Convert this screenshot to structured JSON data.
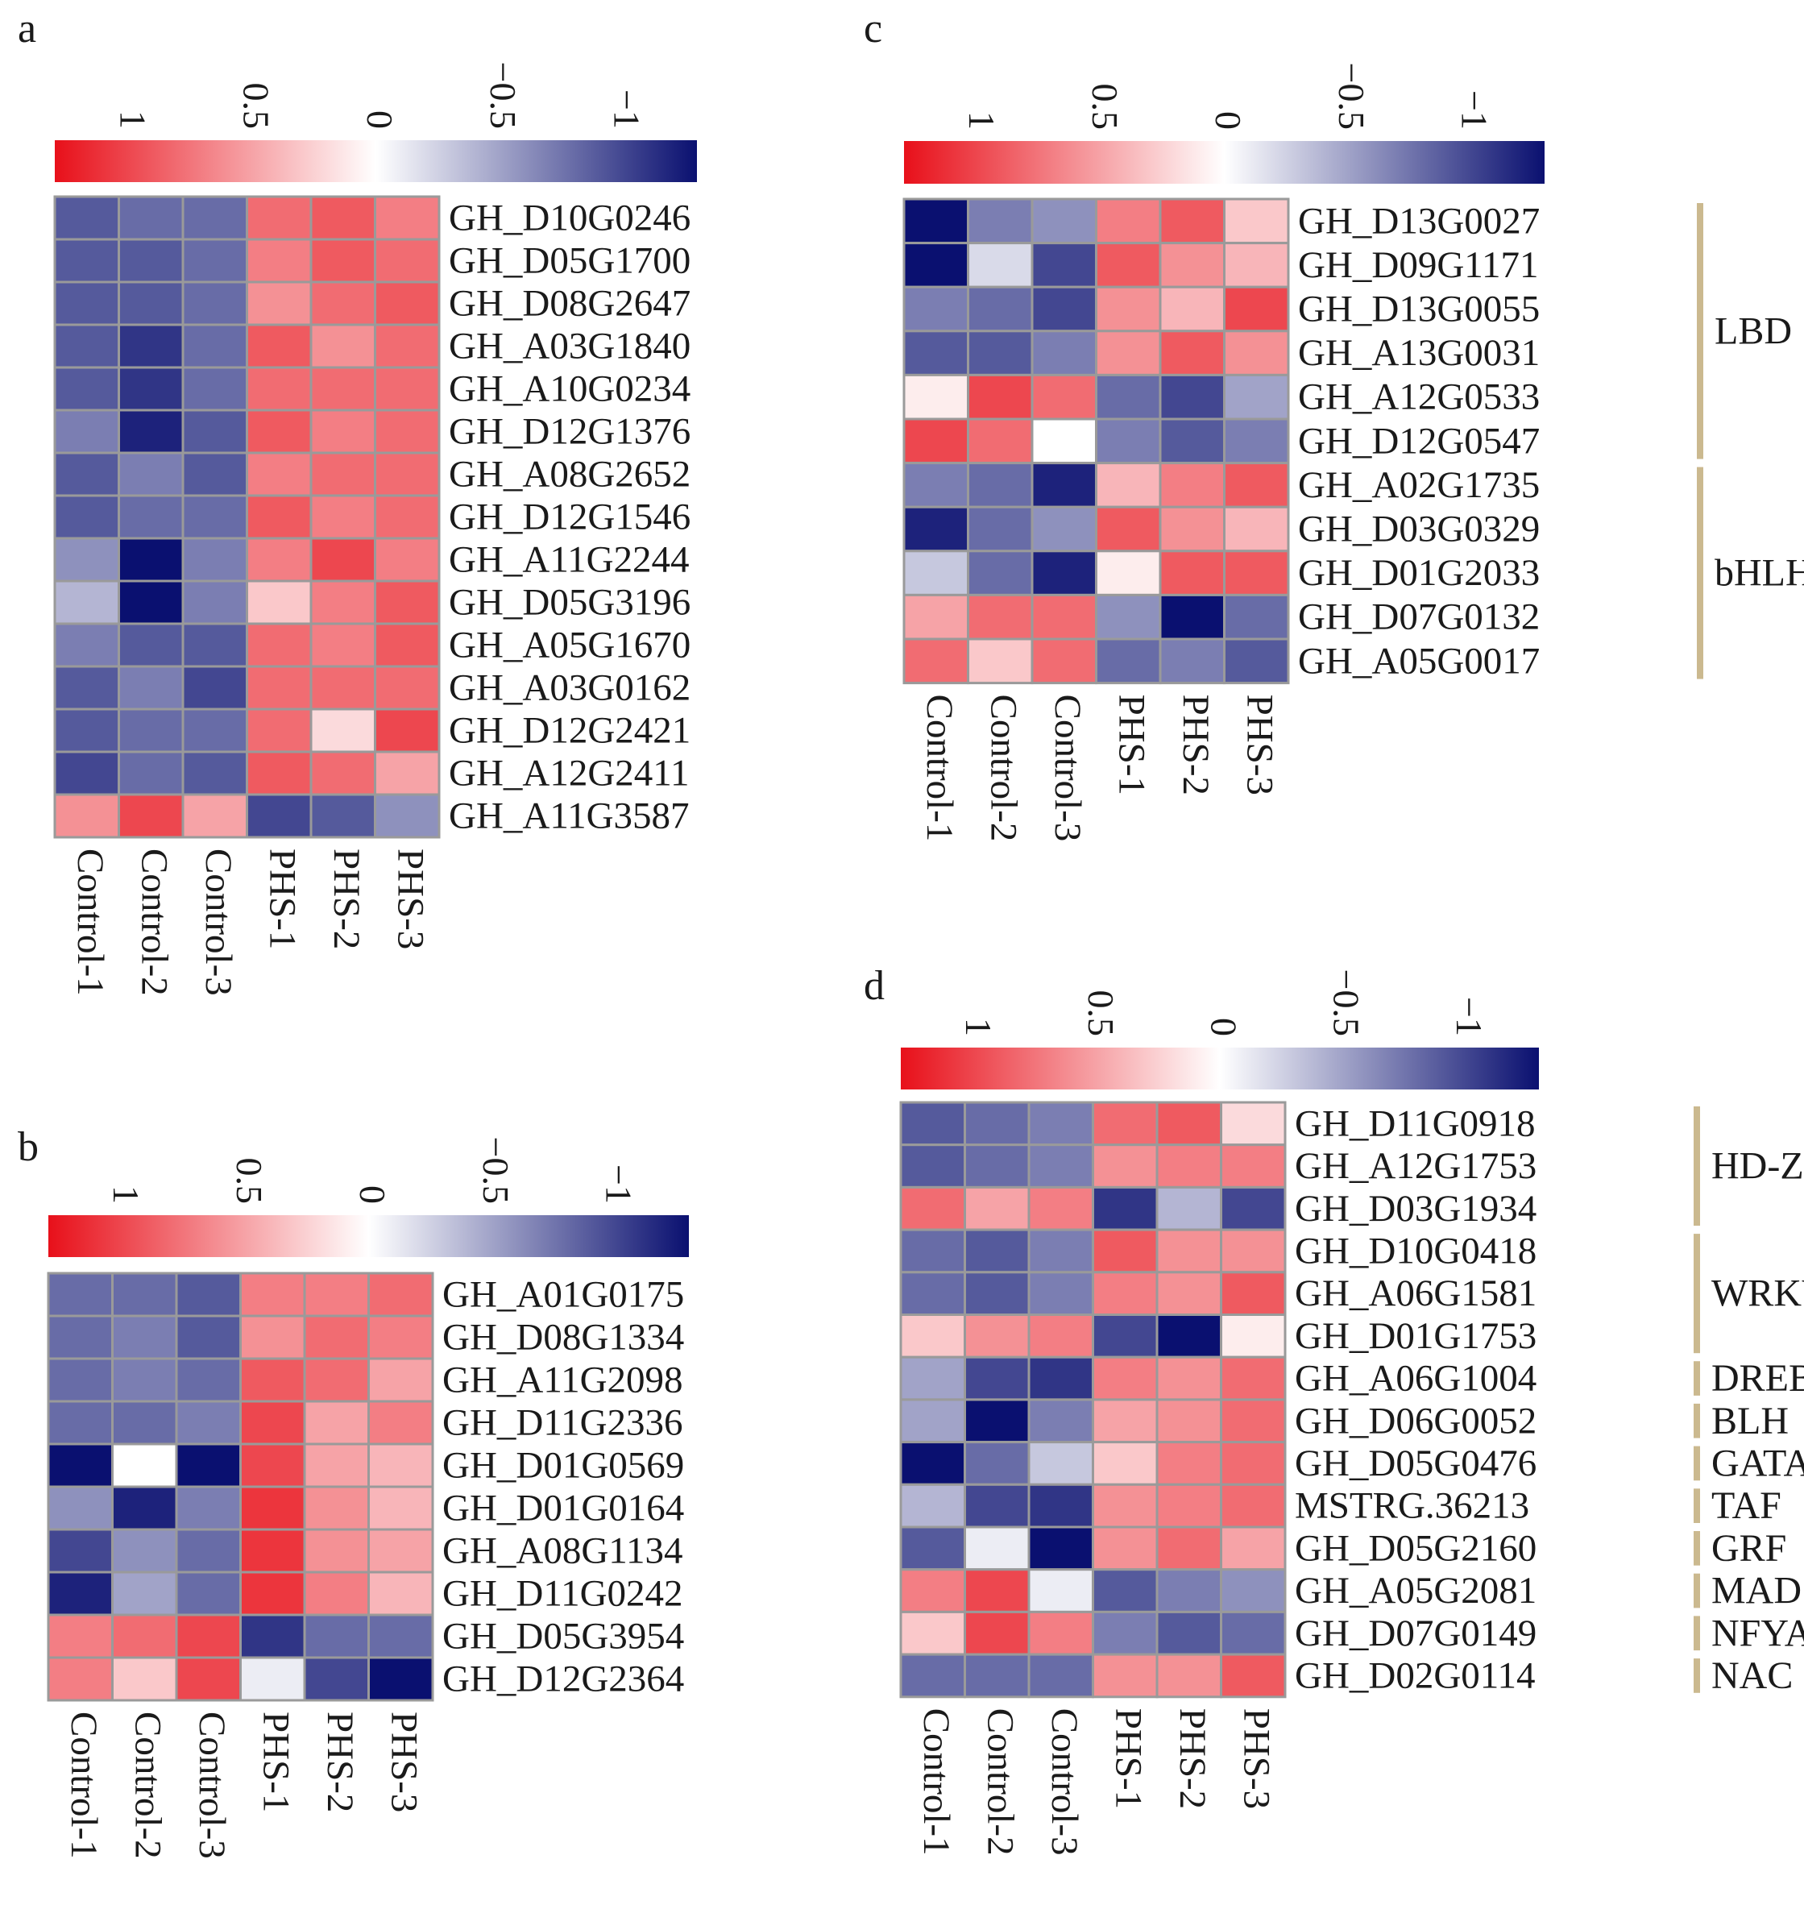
{
  "chart_data": [
    {
      "type": "heatmap",
      "panel": "a",
      "colorbar": {
        "ticks": [
          "1",
          "0.5",
          "0",
          "−0.5",
          "−1"
        ],
        "tick_values": [
          1,
          0.5,
          0,
          -0.5,
          -1
        ],
        "range": [
          1.3,
          -1.3
        ]
      },
      "columns": [
        "Control-1",
        "Control-2",
        "Control-3",
        "PHS-1",
        "PHS-2",
        "PHS-3"
      ],
      "rows": [
        "GH_D10G0246",
        "GH_D05G1700",
        "GH_D08G2647",
        "GH_A03G1840",
        "GH_A10G0234",
        "GH_D12G1376",
        "GH_A08G2652",
        "GH_D12G1546",
        "GH_A11G2244",
        "GH_D05G3196",
        "GH_A05G1670",
        "GH_A03G0162",
        "GH_D12G2421",
        "GH_A12G2411",
        "GH_A11G3587"
      ],
      "values": [
        [
          -0.9,
          -0.8,
          -0.8,
          0.8,
          0.9,
          0.7
        ],
        [
          -0.9,
          -0.9,
          -0.8,
          0.7,
          0.9,
          0.8
        ],
        [
          -0.9,
          -0.9,
          -0.8,
          0.6,
          0.8,
          0.9
        ],
        [
          -0.9,
          -1.1,
          -0.8,
          0.9,
          0.6,
          0.8
        ],
        [
          -0.9,
          -1.1,
          -0.8,
          0.8,
          0.8,
          0.8
        ],
        [
          -0.7,
          -1.2,
          -0.9,
          0.9,
          0.7,
          0.8
        ],
        [
          -0.9,
          -0.7,
          -0.9,
          0.7,
          0.8,
          0.8
        ],
        [
          -0.9,
          -0.8,
          -0.8,
          0.9,
          0.7,
          0.8
        ],
        [
          -0.6,
          -1.3,
          -0.7,
          0.7,
          1.0,
          0.7
        ],
        [
          -0.4,
          -1.3,
          -0.7,
          0.3,
          0.7,
          0.9
        ],
        [
          -0.7,
          -0.9,
          -0.9,
          0.8,
          0.7,
          0.9
        ],
        [
          -0.9,
          -0.7,
          -1.0,
          0.8,
          0.8,
          0.8
        ],
        [
          -0.9,
          -0.8,
          -0.8,
          0.8,
          0.2,
          1.0
        ],
        [
          -1.0,
          -0.8,
          -0.9,
          0.9,
          0.8,
          0.5
        ],
        [
          0.6,
          1.0,
          0.5,
          -1.0,
          -0.9,
          -0.6
        ]
      ]
    },
    {
      "type": "heatmap",
      "panel": "b",
      "colorbar": {
        "ticks": [
          "1",
          "0.5",
          "0",
          "−0.5",
          "−1"
        ],
        "tick_values": [
          1,
          0.5,
          0,
          -0.5,
          -1
        ],
        "range": [
          1.3,
          -1.3
        ]
      },
      "columns": [
        "Control-1",
        "Control-2",
        "Control-3",
        "PHS-1",
        "PHS-2",
        "PHS-3"
      ],
      "rows": [
        "GH_A01G0175",
        "GH_D08G1334",
        "GH_A11G2098",
        "GH_D11G2336",
        "GH_D01G0569",
        "GH_D01G0164",
        "GH_A08G1134",
        "GH_D11G0242",
        "GH_D05G3954",
        "GH_D12G2364"
      ],
      "values": [
        [
          -0.8,
          -0.8,
          -0.9,
          0.7,
          0.7,
          0.8
        ],
        [
          -0.8,
          -0.7,
          -0.9,
          0.6,
          0.8,
          0.7
        ],
        [
          -0.8,
          -0.7,
          -0.8,
          0.9,
          0.8,
          0.5
        ],
        [
          -0.8,
          -0.8,
          -0.7,
          1.0,
          0.5,
          0.7
        ],
        [
          -1.3,
          0.0,
          -1.3,
          1.0,
          0.5,
          0.4
        ],
        [
          -0.6,
          -1.2,
          -0.7,
          1.1,
          0.6,
          0.4
        ],
        [
          -1.0,
          -0.6,
          -0.8,
          1.1,
          0.6,
          0.5
        ],
        [
          -1.2,
          -0.5,
          -0.8,
          1.1,
          0.7,
          0.4
        ],
        [
          0.7,
          0.8,
          1.0,
          -1.1,
          -0.8,
          -0.8
        ],
        [
          0.7,
          0.3,
          1.0,
          -0.1,
          -1.0,
          -1.3
        ]
      ]
    },
    {
      "type": "heatmap",
      "panel": "c",
      "colorbar": {
        "ticks": [
          "1",
          "0.5",
          "0",
          "−0.5",
          "−1"
        ],
        "tick_values": [
          1,
          0.5,
          0,
          -0.5,
          -1
        ],
        "range": [
          1.3,
          -1.3
        ]
      },
      "columns": [
        "Control-1",
        "Control-2",
        "Control-3",
        "PHS-1",
        "PHS-2",
        "PHS-3"
      ],
      "rows": [
        "GH_D13G0027",
        "GH_D09G1171",
        "GH_D13G0055",
        "GH_A13G0031",
        "GH_A12G0533",
        "GH_D12G0547",
        "GH_A02G1735",
        "GH_D03G0329",
        "GH_D01G2033",
        "GH_D07G0132",
        "GH_A05G0017"
      ],
      "values": [
        [
          -1.3,
          -0.7,
          -0.6,
          0.7,
          0.9,
          0.3
        ],
        [
          -1.3,
          -0.2,
          -1.0,
          0.9,
          0.6,
          0.4
        ],
        [
          -0.7,
          -0.8,
          -1.0,
          0.6,
          0.4,
          1.0
        ],
        [
          -0.9,
          -0.9,
          -0.7,
          0.6,
          0.9,
          0.6
        ],
        [
          0.1,
          1.0,
          0.8,
          -0.8,
          -1.0,
          -0.5
        ],
        [
          1.0,
          0.8,
          0.0,
          -0.7,
          -0.9,
          -0.7
        ],
        [
          -0.7,
          -0.8,
          -1.2,
          0.4,
          0.7,
          0.9
        ],
        [
          -1.2,
          -0.8,
          -0.6,
          0.9,
          0.6,
          0.4
        ],
        [
          -0.3,
          -0.8,
          -1.2,
          0.1,
          0.9,
          0.9
        ],
        [
          0.5,
          0.8,
          0.8,
          -0.6,
          -1.3,
          -0.8
        ],
        [
          0.8,
          0.3,
          0.8,
          -0.8,
          -0.7,
          -0.9
        ]
      ]
    },
    {
      "type": "heatmap",
      "panel": "d",
      "colorbar": {
        "ticks": [
          "1",
          "0.5",
          "0",
          "−0.5",
          "−1"
        ],
        "tick_values": [
          1,
          0.5,
          0,
          -0.5,
          -1
        ],
        "range": [
          1.3,
          -1.3
        ]
      },
      "columns": [
        "Control-1",
        "Control-2",
        "Control-3",
        "PHS-1",
        "PHS-2",
        "PHS-3"
      ],
      "rows": [
        "GH_D11G0918",
        "GH_A12G1753",
        "GH_D03G1934",
        "GH_D10G0418",
        "GH_A06G1581",
        "GH_D01G1753",
        "GH_A06G1004",
        "GH_D06G0052",
        "GH_D05G0476",
        "MSTRG.36213",
        "GH_D05G2160",
        "GH_A05G2081",
        "GH_D07G0149",
        "GH_D02G0114"
      ],
      "values": [
        [
          -0.9,
          -0.8,
          -0.7,
          0.8,
          0.9,
          0.2
        ],
        [
          -0.9,
          -0.8,
          -0.7,
          0.6,
          0.7,
          0.7
        ],
        [
          0.8,
          0.5,
          0.7,
          -1.1,
          -0.4,
          -1.0
        ],
        [
          -0.8,
          -0.9,
          -0.7,
          0.9,
          0.6,
          0.6
        ],
        [
          -0.8,
          -0.9,
          -0.7,
          0.7,
          0.6,
          0.9
        ],
        [
          0.3,
          0.6,
          0.7,
          -1.0,
          -1.4,
          0.1
        ],
        [
          -0.5,
          -1.0,
          -1.1,
          0.7,
          0.6,
          0.8
        ],
        [
          -0.5,
          -1.3,
          -0.7,
          0.5,
          0.6,
          0.8
        ],
        [
          -1.3,
          -0.8,
          -0.3,
          0.3,
          0.7,
          0.8
        ],
        [
          -0.4,
          -1.0,
          -1.1,
          0.6,
          0.7,
          0.8
        ],
        [
          -0.9,
          -0.1,
          -1.3,
          0.6,
          0.8,
          0.5
        ],
        [
          0.7,
          1.0,
          -0.1,
          -0.9,
          -0.7,
          -0.6
        ],
        [
          0.3,
          1.0,
          0.7,
          -0.7,
          -0.9,
          -0.8
        ],
        [
          -0.8,
          -0.8,
          -0.8,
          0.6,
          0.6,
          0.9
        ]
      ]
    }
  ],
  "panels": {
    "a": {
      "label": "a"
    },
    "b": {
      "label": "b"
    },
    "c": {
      "label": "c",
      "groups": [
        {
          "label": "LBD",
          "from": 0,
          "to": 5
        },
        {
          "label": "bHLH",
          "from": 6,
          "to": 10
        }
      ]
    },
    "d": {
      "label": "d",
      "groups": [
        {
          "label": "HD-Zip",
          "from": 0,
          "to": 2
        },
        {
          "label": "WRKY",
          "from": 3,
          "to": 5
        },
        {
          "label": "DREB",
          "from": 6,
          "to": 6
        },
        {
          "label": "BLH",
          "from": 7,
          "to": 7
        },
        {
          "label": "GATA",
          "from": 8,
          "to": 8
        },
        {
          "label": "TAF",
          "from": 9,
          "to": 9
        },
        {
          "label": "GRF",
          "from": 10,
          "to": 10
        },
        {
          "label": "MADS",
          "from": 11,
          "to": 11
        },
        {
          "label": "NFYA",
          "from": 12,
          "to": 12
        },
        {
          "label": "NAC",
          "from": 13,
          "to": 13
        }
      ]
    }
  },
  "colors": {
    "high": "#e8101a",
    "mid": "#ffffff",
    "low": "#0a1070",
    "grid": "#9a9a9a",
    "group_bar": "#cbb98f"
  }
}
